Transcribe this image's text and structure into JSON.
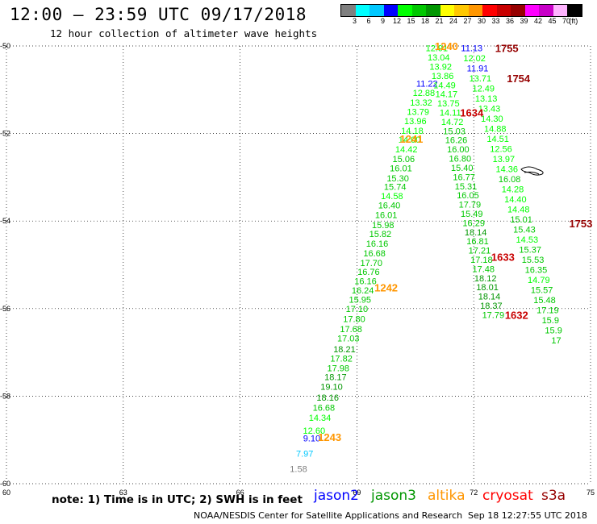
{
  "header": {
    "title": "12:00 – 23:59 UTC 09/17/2018",
    "subtitle": "12 hour collection of altimeter wave heights"
  },
  "colorbar": {
    "colors": [
      "#808080",
      "#00ffff",
      "#00c8ff",
      "#0000ff",
      "#00ff00",
      "#00c800",
      "#009600",
      "#ffff00",
      "#ffc800",
      "#ff9600",
      "#ff0000",
      "#c80000",
      "#960000",
      "#ff00ff",
      "#c800c8",
      "#ffb4ff",
      "#000000"
    ],
    "labels": [
      "3",
      "6",
      "9",
      "12",
      "15",
      "18",
      "21",
      "24",
      "27",
      "30",
      "33",
      "36",
      "39",
      "42",
      "45",
      "70",
      "(ft)"
    ]
  },
  "axes": {
    "lon_min": 60,
    "lon_max": 75,
    "lat_min": -60,
    "lat_max": -50,
    "x_ticks": [
      "60",
      "63",
      "66",
      "69",
      "72",
      "75"
    ],
    "y_ticks": [
      "-50",
      "-52",
      "-54",
      "-56",
      "-58",
      "-60"
    ],
    "grid": "dotted"
  },
  "tracks": [
    {
      "name": "altika-1240-1243",
      "color_mode": "by_value",
      "points": [
        {
          "lon": 67.5,
          "lat": -59.66,
          "v": "1.58"
        },
        {
          "lon": 67.66,
          "lat": -59.31,
          "v": "7.97"
        },
        {
          "lon": 67.84,
          "lat": -58.96,
          "v": "9.10"
        },
        {
          "lon": 67.9,
          "lat": -58.78,
          "v": "12.60"
        },
        {
          "lon": 68.05,
          "lat": -58.49,
          "v": "14.34"
        },
        {
          "lon": 68.15,
          "lat": -58.26,
          "v": "16.68"
        },
        {
          "lon": 68.25,
          "lat": -58.03,
          "v": "18.16"
        },
        {
          "lon": 68.35,
          "lat": -57.78,
          "v": "19.10"
        },
        {
          "lon": 68.45,
          "lat": -57.56,
          "v": "18.17"
        },
        {
          "lon": 68.52,
          "lat": -57.36,
          "v": "17.98"
        },
        {
          "lon": 68.6,
          "lat": -57.14,
          "v": "17.82"
        },
        {
          "lon": 68.68,
          "lat": -56.92,
          "v": "18.21"
        },
        {
          "lon": 68.78,
          "lat": -56.68,
          "v": "17.03"
        },
        {
          "lon": 68.85,
          "lat": -56.46,
          "v": "17.68"
        },
        {
          "lon": 68.93,
          "lat": -56.23,
          "v": "17.80"
        },
        {
          "lon": 69.0,
          "lat": -56.0,
          "v": "17.10"
        },
        {
          "lon": 69.08,
          "lat": -55.79,
          "v": "15.95"
        },
        {
          "lon": 69.15,
          "lat": -55.58,
          "v": "16.24"
        },
        {
          "lon": 69.22,
          "lat": -55.37,
          "v": "16.16"
        },
        {
          "lon": 69.3,
          "lat": -55.16,
          "v": "16.76"
        },
        {
          "lon": 69.37,
          "lat": -54.95,
          "v": "17.70"
        },
        {
          "lon": 69.45,
          "lat": -54.73,
          "v": "16.68"
        },
        {
          "lon": 69.52,
          "lat": -54.51,
          "v": "16.16"
        },
        {
          "lon": 69.6,
          "lat": -54.29,
          "v": "15.82"
        },
        {
          "lon": 69.67,
          "lat": -54.09,
          "v": "15.98"
        },
        {
          "lon": 69.75,
          "lat": -53.86,
          "v": "16.01"
        },
        {
          "lon": 69.83,
          "lat": -53.64,
          "v": "16.40"
        },
        {
          "lon": 69.9,
          "lat": -53.43,
          "v": "14.58"
        },
        {
          "lon": 69.98,
          "lat": -53.21,
          "v": "15.74"
        },
        {
          "lon": 70.05,
          "lat": -53.02,
          "v": "15.30"
        },
        {
          "lon": 70.13,
          "lat": -52.79,
          "v": "16.01"
        },
        {
          "lon": 70.2,
          "lat": -52.58,
          "v": "15.06"
        },
        {
          "lon": 70.27,
          "lat": -52.36,
          "v": "14.42"
        },
        {
          "lon": 70.35,
          "lat": -52.14,
          "v": "14.00"
        },
        {
          "lon": 70.42,
          "lat": -51.93,
          "v": "14.18"
        },
        {
          "lon": 70.5,
          "lat": -51.71,
          "v": "13.96"
        },
        {
          "lon": 70.57,
          "lat": -51.5,
          "v": "13.79"
        },
        {
          "lon": 70.65,
          "lat": -51.29,
          "v": "13.32"
        },
        {
          "lon": 70.72,
          "lat": -51.07,
          "v": "12.88"
        },
        {
          "lon": 70.8,
          "lat": -50.86,
          "v": "11.22"
        }
      ]
    },
    {
      "name": "jason3-1634-1632",
      "color_mode": "by_value",
      "points": [
        {
          "lon": 71.05,
          "lat": -50.05,
          "v": "12.91"
        },
        {
          "lon": 71.1,
          "lat": -50.26,
          "v": "13.04"
        },
        {
          "lon": 71.15,
          "lat": -50.47,
          "v": "13.92"
        },
        {
          "lon": 71.2,
          "lat": -50.68,
          "v": "13.86"
        },
        {
          "lon": 71.25,
          "lat": -50.89,
          "v": "14.49"
        },
        {
          "lon": 71.3,
          "lat": -51.1,
          "v": "14.17"
        },
        {
          "lon": 71.35,
          "lat": -51.31,
          "v": "13.75"
        },
        {
          "lon": 71.4,
          "lat": -51.52,
          "v": "14.11"
        },
        {
          "lon": 71.45,
          "lat": -51.73,
          "v": "14.72"
        },
        {
          "lon": 71.5,
          "lat": -51.94,
          "v": "15.03"
        },
        {
          "lon": 71.55,
          "lat": -52.15,
          "v": "16.26"
        },
        {
          "lon": 71.6,
          "lat": -52.36,
          "v": "16.00"
        },
        {
          "lon": 71.65,
          "lat": -52.57,
          "v": "16.80"
        },
        {
          "lon": 71.7,
          "lat": -52.78,
          "v": "15.40"
        },
        {
          "lon": 71.75,
          "lat": -52.99,
          "v": "16.77"
        },
        {
          "lon": 71.8,
          "lat": -53.2,
          "v": "15.31"
        },
        {
          "lon": 71.85,
          "lat": -53.41,
          "v": "16.05"
        },
        {
          "lon": 71.9,
          "lat": -53.62,
          "v": "17.79"
        },
        {
          "lon": 71.95,
          "lat": -53.83,
          "v": "15.49"
        },
        {
          "lon": 72.0,
          "lat": -54.04,
          "v": "16.29"
        },
        {
          "lon": 72.05,
          "lat": -54.25,
          "v": "18.14"
        },
        {
          "lon": 72.1,
          "lat": -54.46,
          "v": "16.81"
        },
        {
          "lon": 72.15,
          "lat": -54.67,
          "v": "17.21"
        },
        {
          "lon": 72.2,
          "lat": -54.88,
          "v": "17.18"
        },
        {
          "lon": 72.25,
          "lat": -55.09,
          "v": "17.48"
        },
        {
          "lon": 72.3,
          "lat": -55.3,
          "v": "18.12"
        },
        {
          "lon": 72.35,
          "lat": -55.51,
          "v": "18.01"
        },
        {
          "lon": 72.4,
          "lat": -55.72,
          "v": "18.14"
        },
        {
          "lon": 72.45,
          "lat": -55.93,
          "v": "18.37"
        },
        {
          "lon": 72.5,
          "lat": -56.14,
          "v": "17.79"
        }
      ]
    },
    {
      "name": "cryosat-1755-1753",
      "color_mode": "by_value",
      "points": [
        {
          "lon": 71.95,
          "lat": -50.05,
          "v": "11.13"
        },
        {
          "lon": 72.02,
          "lat": -50.28,
          "v": "12.02"
        },
        {
          "lon": 72.1,
          "lat": -50.51,
          "v": "11.91"
        },
        {
          "lon": 72.17,
          "lat": -50.74,
          "v": "13.71"
        },
        {
          "lon": 72.25,
          "lat": -50.97,
          "v": "12.49"
        },
        {
          "lon": 72.32,
          "lat": -51.2,
          "v": "13.13"
        },
        {
          "lon": 72.4,
          "lat": -51.43,
          "v": "13.43"
        },
        {
          "lon": 72.47,
          "lat": -51.66,
          "v": "14.30"
        },
        {
          "lon": 72.55,
          "lat": -51.89,
          "v": "14.88"
        },
        {
          "lon": 72.62,
          "lat": -52.12,
          "v": "14.51"
        },
        {
          "lon": 72.7,
          "lat": -52.35,
          "v": "12.56"
        },
        {
          "lon": 72.77,
          "lat": -52.58,
          "v": "13.97"
        },
        {
          "lon": 72.85,
          "lat": -52.81,
          "v": "14.36"
        },
        {
          "lon": 72.92,
          "lat": -53.04,
          "v": "16.08"
        },
        {
          "lon": 73.0,
          "lat": -53.27,
          "v": "14.28"
        },
        {
          "lon": 73.07,
          "lat": -53.5,
          "v": "14.40"
        },
        {
          "lon": 73.15,
          "lat": -53.73,
          "v": "14.48"
        },
        {
          "lon": 73.22,
          "lat": -53.96,
          "v": "15.01"
        },
        {
          "lon": 73.3,
          "lat": -54.19,
          "v": "15.43"
        },
        {
          "lon": 73.37,
          "lat": -54.42,
          "v": "14.53"
        },
        {
          "lon": 73.45,
          "lat": -54.65,
          "v": "15.37"
        },
        {
          "lon": 73.52,
          "lat": -54.88,
          "v": "15.53"
        },
        {
          "lon": 73.6,
          "lat": -55.11,
          "v": "16.35"
        },
        {
          "lon": 73.67,
          "lat": -55.34,
          "v": "14.79"
        },
        {
          "lon": 73.75,
          "lat": -55.57,
          "v": "15.57"
        },
        {
          "lon": 73.82,
          "lat": -55.8,
          "v": "15.48"
        },
        {
          "lon": 73.9,
          "lat": -56.03,
          "v": "17.19"
        },
        {
          "lon": 73.97,
          "lat": -56.26,
          "v": "15.9"
        },
        {
          "lon": 74.05,
          "lat": -56.49,
          "v": "15.9"
        },
        {
          "lon": 74.12,
          "lat": -56.72,
          "v": "17"
        }
      ]
    }
  ],
  "time_labels": [
    {
      "text": "1240",
      "lon": 71.0,
      "lat": -50.0,
      "color": "#ff9600",
      "bold": true
    },
    {
      "text": "1241",
      "lon": 70.1,
      "lat": -52.12,
      "color": "#ff9600",
      "bold": true
    },
    {
      "text": "1242",
      "lon": 69.45,
      "lat": -55.52,
      "color": "#ff9600",
      "bold": true
    },
    {
      "text": "1243",
      "lon": 68.0,
      "lat": -58.93,
      "color": "#ff9600",
      "bold": true
    },
    {
      "text": "1755",
      "lon": 72.55,
      "lat": -50.05,
      "color": "#960000",
      "bold": true
    },
    {
      "text": "1754",
      "lon": 72.85,
      "lat": -50.74,
      "color": "#960000",
      "bold": true
    },
    {
      "text": "1753",
      "lon": 74.45,
      "lat": -54.05,
      "color": "#960000",
      "bold": true
    },
    {
      "text": "1634",
      "lon": 71.65,
      "lat": -51.52,
      "color": "#c80000",
      "bold": true
    },
    {
      "text": "1633",
      "lon": 72.45,
      "lat": -54.82,
      "color": "#c80000",
      "bold": true
    },
    {
      "text": "1632",
      "lon": 72.8,
      "lat": -56.14,
      "color": "#c80000",
      "bold": true
    }
  ],
  "note": "note:  1) Time is in UTC; 2) SWH is in feet",
  "legend": [
    {
      "text": "jason2",
      "color": "#0000ff"
    },
    {
      "text": "jason3",
      "color": "#009600"
    },
    {
      "text": "altika",
      "color": "#ff9600"
    },
    {
      "text": "cryosat",
      "color": "#ff0000"
    },
    {
      "text": "s3a",
      "color": "#960000"
    }
  ],
  "footer": {
    "credit": "NOAA/NESDIS Center for Satellite Applications and Research",
    "timestamp": "Sep 18 12:27:55 UTC 2018"
  }
}
